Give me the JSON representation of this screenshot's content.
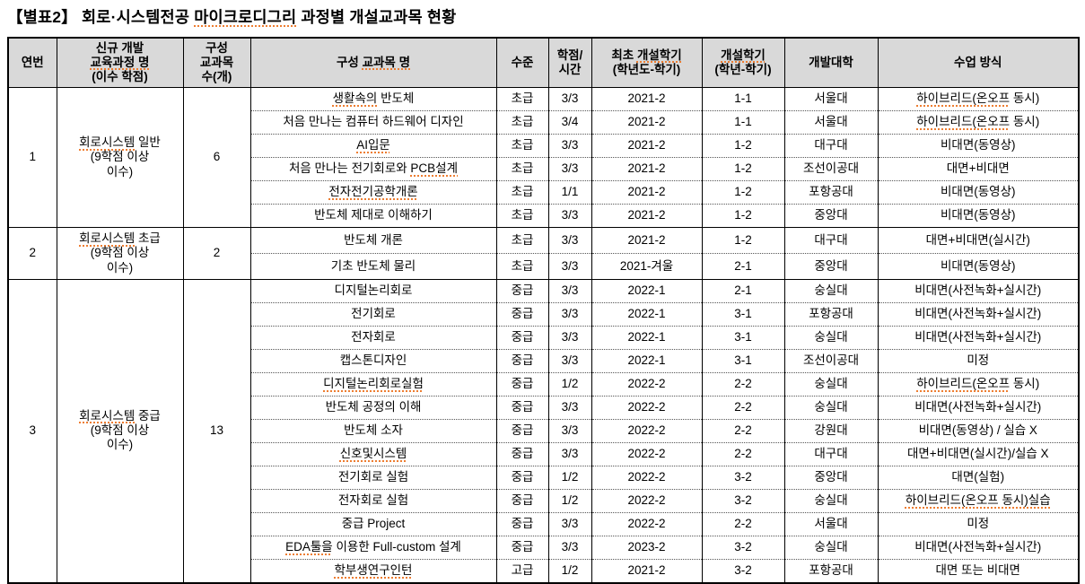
{
  "title": [
    [
      "【별표2】 회로·시스템전공 ",
      false
    ],
    [
      "마이크로디그리",
      true
    ],
    [
      " 과정별 개설교과목 현황",
      false
    ]
  ],
  "columns": [
    "연번",
    [
      [
        "신규 개발\n",
        false
      ],
      [
        "교육과정 명",
        true
      ],
      [
        "\n(이수 학점)",
        false
      ]
    ],
    "구성\n교과목\n수(개)",
    [
      [
        "구성 ",
        false
      ],
      [
        "교과목 명",
        true
      ]
    ],
    "수준",
    "학점/\n시간",
    [
      [
        "최초 ",
        false
      ],
      [
        "개설학기",
        true
      ],
      [
        "\n(학년도-학기)",
        false
      ]
    ],
    [
      [
        "개설학기",
        true
      ],
      [
        "\n(학년-학기)",
        false
      ]
    ],
    "개발대학",
    "수업 방식"
  ],
  "groups": [
    {
      "no": "1",
      "program": [
        [
          "회로시스템",
          true
        ],
        [
          " 일반\n(9학점 이상\n이수)",
          false
        ]
      ],
      "count": "6",
      "courses": [
        {
          "name": [
            [
              "생활속의",
              true
            ],
            [
              " 반도체",
              false
            ]
          ],
          "level": "초급",
          "credit": "3/3",
          "first": "2021-2",
          "term": "1-1",
          "univ": "서울대",
          "method": [
            [
              "하이브리드(온오프",
              true
            ],
            [
              " 동시)",
              false
            ]
          ]
        },
        {
          "name": "처음 만나는 컴퓨터 하드웨어 디자인",
          "level": "초급",
          "credit": "3/4",
          "first": "2021-2",
          "term": "1-1",
          "univ": "서울대",
          "method": [
            [
              "하이브리드(온오프",
              true
            ],
            [
              " 동시)",
              false
            ]
          ]
        },
        {
          "name": [
            [
              "AI입문",
              true
            ]
          ],
          "level": "초급",
          "credit": "3/3",
          "first": "2021-2",
          "term": "1-2",
          "univ": "대구대",
          "method": "비대면(동영상)"
        },
        {
          "name": [
            [
              "처음 만나는 전기회로와 ",
              false
            ],
            [
              "PCB설계",
              true
            ]
          ],
          "level": "초급",
          "credit": "3/3",
          "first": "2021-2",
          "term": "1-2",
          "univ": "조선이공대",
          "method": "대면+비대면"
        },
        {
          "name": [
            [
              "전자전기공학개론",
              true
            ]
          ],
          "level": "초급",
          "credit": "1/1",
          "first": "2021-2",
          "term": "1-2",
          "univ": "포항공대",
          "method": "비대면(동영상)"
        },
        {
          "name": "반도체 제대로 이해하기",
          "level": "초급",
          "credit": "3/3",
          "first": "2021-2",
          "term": "1-2",
          "univ": "중앙대",
          "method": "비대면(동영상)"
        }
      ]
    },
    {
      "no": "2",
      "program": [
        [
          "회로시스템",
          true
        ],
        [
          " 초급\n(9학점 이상\n이수)",
          false
        ]
      ],
      "count": "2",
      "courses": [
        {
          "name": "반도체 개론",
          "level": "초급",
          "credit": "3/3",
          "first": "2021-2",
          "term": "1-2",
          "univ": "대구대",
          "method": "대면+비대면(실시간)"
        },
        {
          "name": "기초 반도체 물리",
          "level": "초급",
          "credit": "3/3",
          "first": "2021-겨울",
          "term": "2-1",
          "univ": "중앙대",
          "method": "비대면(동영상)"
        }
      ]
    },
    {
      "no": "3",
      "program": [
        [
          "회로시스템",
          true
        ],
        [
          " 중급\n(9학점 이상\n이수)",
          false
        ]
      ],
      "count": "13",
      "courses": [
        {
          "name": "디지털논리회로",
          "level": "중급",
          "credit": "3/3",
          "first": "2022-1",
          "term": "2-1",
          "univ": "숭실대",
          "method": "비대면(사전녹화+실시간)"
        },
        {
          "name": "전기회로",
          "level": "중급",
          "credit": "3/3",
          "first": "2022-1",
          "term": "3-1",
          "univ": "포항공대",
          "method": "비대면(사전녹화+실시간)"
        },
        {
          "name": "전자회로",
          "level": "중급",
          "credit": "3/3",
          "first": "2022-1",
          "term": "3-1",
          "univ": "숭실대",
          "method": "비대면(사전녹화+실시간)"
        },
        {
          "name": "캡스톤디자인",
          "level": "중급",
          "credit": "3/3",
          "first": "2022-1",
          "term": "3-1",
          "univ": "조선이공대",
          "method": "미정"
        },
        {
          "name": [
            [
              "디지털논리회로실험",
              true
            ]
          ],
          "level": "중급",
          "credit": "1/2",
          "first": "2022-2",
          "term": "2-2",
          "univ": "숭실대",
          "method": [
            [
              "하이브리드(온오프",
              true
            ],
            [
              " 동시)",
              false
            ]
          ]
        },
        {
          "name": "반도체 공정의 이해",
          "level": "중급",
          "credit": "3/3",
          "first": "2022-2",
          "term": "2-2",
          "univ": "숭실대",
          "method": "비대면(사전녹화+실시간)"
        },
        {
          "name": "반도체 소자",
          "level": "중급",
          "credit": "3/3",
          "first": "2022-2",
          "term": "2-2",
          "univ": "강원대",
          "method": "비대면(동영상) / 실습 X"
        },
        {
          "name": [
            [
              "신호및시스템",
              true
            ]
          ],
          "level": "중급",
          "credit": "3/3",
          "first": "2022-2",
          "term": "2-2",
          "univ": "대구대",
          "method": "대면+비대면(실시간)/실습 X"
        },
        {
          "name": "전기회로 실험",
          "level": "중급",
          "credit": "1/2",
          "first": "2022-2",
          "term": "3-2",
          "univ": "중앙대",
          "method": "대면(실험)"
        },
        {
          "name": "전자회로 실험",
          "level": "중급",
          "credit": "1/2",
          "first": "2022-2",
          "term": "3-2",
          "univ": "숭실대",
          "method": [
            [
              "하이브리드(온오프 동시)실습",
              true
            ]
          ]
        },
        {
          "name": "중급 Project",
          "level": "중급",
          "credit": "3/3",
          "first": "2022-2",
          "term": "2-2",
          "univ": "서울대",
          "method": "미정"
        },
        {
          "name": [
            [
              "EDA툴을",
              true
            ],
            [
              " 이용한 Full-custom 설계",
              false
            ]
          ],
          "level": "중급",
          "credit": "3/3",
          "first": "2023-2",
          "term": "3-2",
          "univ": "숭실대",
          "method": "비대면(사전녹화+실시간)"
        },
        {
          "name": [
            [
              "학부생연구인턴",
              true
            ]
          ],
          "level": "고급",
          "credit": "1/2",
          "first": "2021-2",
          "term": "3-2",
          "univ": "포항공대",
          "method": "대면 또는 비대면"
        }
      ]
    }
  ]
}
